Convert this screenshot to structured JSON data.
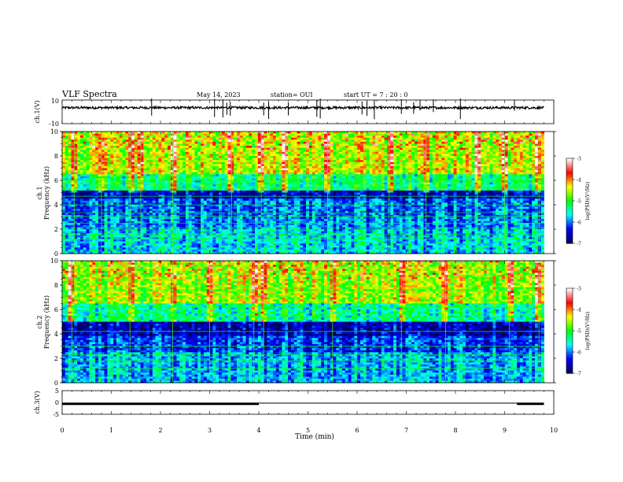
{
  "header": {
    "title": "VLF Spectra",
    "date": "May 14, 2023",
    "station": "station= OUI",
    "start_ut": "start  UT =   7 : 20 : 0"
  },
  "chart_data": [
    {
      "type": "line",
      "panel": "ch1-waveform",
      "ylabel": "ch.1(V)",
      "ylim": [
        -10,
        10
      ],
      "y_tick_labels": [
        "10",
        "-10"
      ],
      "x_range_min": [
        0,
        9.8
      ],
      "baseline_v": 3.5,
      "noise_amplitude_v": 1.0,
      "spikes_min": [
        1.82,
        3.1,
        3.27,
        3.35,
        3.42,
        4.1,
        4.2,
        4.6,
        5.18,
        5.25,
        6.1,
        6.2,
        6.35,
        6.9,
        7.15,
        7.28,
        7.55,
        8.1,
        9.2
      ]
    },
    {
      "type": "heatmap",
      "panel": "ch1-spectrogram",
      "ylabel": "ch.1\nFrequency (kHz)",
      "ylim": [
        0,
        10
      ],
      "y_ticks": [
        0,
        2,
        4,
        6,
        8,
        10
      ],
      "x_range_min": [
        0,
        9.8
      ],
      "colorbar": {
        "label": "log(PSD)(V²/Hz)",
        "range": [
          -7,
          -3
        ],
        "ticks": [
          "-3",
          "-4",
          "-5",
          "-6",
          "-7"
        ],
        "colors": [
          "#00005a",
          "#0000ff",
          "#00ffff",
          "#00ff00",
          "#ffff00",
          "#ff0000",
          "#ffffff"
        ]
      },
      "bands": [
        {
          "f": [
            6.5,
            10.0
          ],
          "level": 0.62
        },
        {
          "f": [
            5.2,
            6.5
          ],
          "level": 0.42
        },
        {
          "f": [
            4.5,
            5.2
          ],
          "level": 0.1
        },
        {
          "f": [
            3.0,
            4.5
          ],
          "level": 0.22
        },
        {
          "f": [
            2.0,
            3.0
          ],
          "level": 0.25
        },
        {
          "f": [
            0.0,
            2.0
          ],
          "level": 0.32
        }
      ],
      "tones_khz": [
        1.2,
        1.6,
        2.1,
        2.5,
        3.05,
        3.35,
        4.0,
        4.7,
        5.4,
        6.0
      ],
      "vertical_bursts_min": [
        0.25,
        0.8,
        1.38,
        1.6,
        2.25,
        3.45,
        4.05,
        4.55,
        5.4,
        6.65,
        7.4,
        8.45,
        9.0,
        9.7
      ]
    },
    {
      "type": "heatmap",
      "panel": "ch2-spectrogram",
      "ylabel": "ch.2\nFrequency (kHz)",
      "ylim": [
        0,
        10
      ],
      "y_ticks": [
        0,
        2,
        4,
        6,
        8,
        10
      ],
      "x_range_min": [
        0,
        9.8
      ],
      "colorbar": {
        "label": "log(PSD)(V²/Hz)",
        "range": [
          -7,
          -3
        ],
        "ticks": [
          "-3",
          "-4",
          "-5",
          "-6",
          "-7"
        ],
        "colors": [
          "#00005a",
          "#0000ff",
          "#00ffff",
          "#00ff00",
          "#ffff00",
          "#ff0000",
          "#ffffff"
        ]
      },
      "bands": [
        {
          "f": [
            6.5,
            10.0
          ],
          "level": 0.6
        },
        {
          "f": [
            5.0,
            6.5
          ],
          "level": 0.4
        },
        {
          "f": [
            3.8,
            5.0
          ],
          "level": 0.1
        },
        {
          "f": [
            2.5,
            3.8
          ],
          "level": 0.2
        },
        {
          "f": [
            0.0,
            2.5
          ],
          "level": 0.3
        }
      ],
      "tones_khz": [
        1.2,
        1.8,
        2.3,
        3.0,
        4.2,
        5.4,
        6.2,
        7.6
      ],
      "vertical_bursts_min": [
        0.2,
        1.38,
        2.25,
        3.0,
        3.9,
        4.1,
        5.5,
        6.9,
        7.8,
        9.1,
        9.7
      ]
    },
    {
      "type": "line",
      "panel": "ch3-waveform",
      "ylabel": "ch.3(V)",
      "ylim": [
        -5,
        5
      ],
      "y_tick_labels": [
        "5",
        "0",
        "-5"
      ],
      "segments": [
        {
          "t": [
            0,
            4.0
          ],
          "v": -0.6
        },
        {
          "t": [
            4.0,
            9.25
          ],
          "v": -0.3
        },
        {
          "t": [
            9.25,
            9.8
          ],
          "v": -0.6
        }
      ]
    }
  ],
  "x_axis": {
    "label": "Time (min)",
    "range": [
      0,
      10
    ],
    "tick_labels": [
      "0",
      "1",
      "2",
      "3",
      "4",
      "5",
      "6",
      "7",
      "8",
      "9",
      "10"
    ]
  }
}
